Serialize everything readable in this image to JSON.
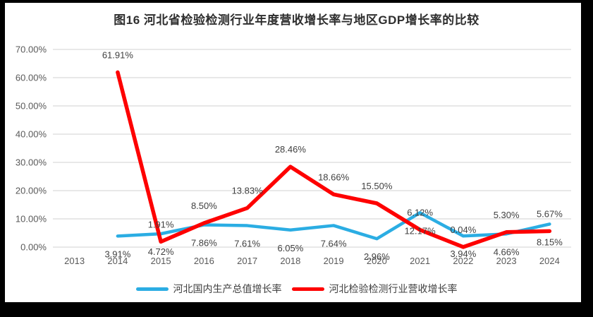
{
  "title": "图16 河北省检验检测行业年度营收增长率与地区GDP增长率的比较",
  "colors": {
    "background_frame": "#000000",
    "plot_background": "#ffffff",
    "gridline": "#d9d9d9",
    "axis_text": "#595959",
    "data_label_text": "#404040",
    "gdp_line": "#2bade3",
    "revenue_line": "#fe0000"
  },
  "chart_data": {
    "type": "line",
    "title": "图16 河北省检验检测行业年度营收增长率与地区GDP增长率的比较",
    "categories": [
      "2013",
      "2014",
      "2015",
      "2016",
      "2017",
      "2018",
      "2019",
      "2020",
      "2021",
      "2022",
      "2023",
      "2024"
    ],
    "series": [
      {
        "name": "河北国内生产总值增长率",
        "color": "#2bade3",
        "label_position": "below",
        "values": [
          null,
          3.91,
          4.72,
          7.86,
          7.61,
          6.05,
          7.64,
          2.96,
          12.17,
          3.94,
          4.66,
          8.15
        ]
      },
      {
        "name": "河北检验检测行业营收增长率",
        "color": "#fe0000",
        "label_position": "above",
        "values": [
          null,
          61.91,
          1.91,
          8.5,
          13.83,
          28.46,
          18.66,
          15.5,
          6.12,
          0.04,
          5.3,
          5.67
        ]
      }
    ],
    "ylim": [
      0,
      70
    ],
    "ytick_step": 10,
    "ytick_labels": [
      "0.00%",
      "10.00%",
      "20.00%",
      "30.00%",
      "40.00%",
      "50.00%",
      "60.00%",
      "70.00%"
    ],
    "grid": true,
    "legend_position": "bottom",
    "data_labels_visible": true,
    "label_format": "0.00%"
  }
}
